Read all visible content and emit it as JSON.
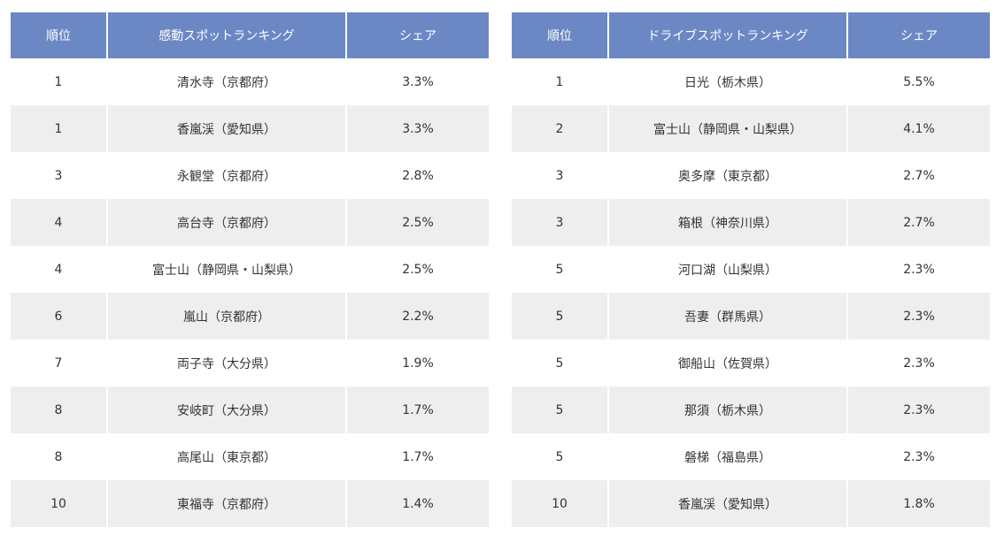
{
  "tables": [
    {
      "headers": {
        "rank": "順位",
        "name": "感動スポットランキング",
        "share": "シェア"
      },
      "rows": [
        {
          "rank": "1",
          "name": "清水寺（京都府）",
          "share": "3.3%"
        },
        {
          "rank": "1",
          "name": "香嵐渓（愛知県）",
          "share": "3.3%"
        },
        {
          "rank": "3",
          "name": "永観堂（京都府）",
          "share": "2.8%"
        },
        {
          "rank": "4",
          "name": "高台寺（京都府）",
          "share": "2.5%"
        },
        {
          "rank": "4",
          "name": "富士山（静岡県・山梨県）",
          "share": "2.5%"
        },
        {
          "rank": "6",
          "name": "嵐山（京都府）",
          "share": "2.2%"
        },
        {
          "rank": "7",
          "name": "両子寺（大分県）",
          "share": "1.9%"
        },
        {
          "rank": "8",
          "name": "安岐町（大分県）",
          "share": "1.7%"
        },
        {
          "rank": "8",
          "name": "高尾山（東京都）",
          "share": "1.7%"
        },
        {
          "rank": "10",
          "name": "東福寺（京都府）",
          "share": "1.4%"
        }
      ]
    },
    {
      "headers": {
        "rank": "順位",
        "name": "ドライブスポットランキング",
        "share": "シェア"
      },
      "rows": [
        {
          "rank": "1",
          "name": "日光（栃木県）",
          "share": "5.5%"
        },
        {
          "rank": "2",
          "name": "富士山（静岡県・山梨県）",
          "share": "4.1%"
        },
        {
          "rank": "3",
          "name": "奥多摩（東京都）",
          "share": "2.7%"
        },
        {
          "rank": "3",
          "name": "箱根（神奈川県）",
          "share": "2.7%"
        },
        {
          "rank": "5",
          "name": "河口湖（山梨県）",
          "share": "2.3%"
        },
        {
          "rank": "5",
          "name": "吾妻（群馬県）",
          "share": "2.3%"
        },
        {
          "rank": "5",
          "name": "御船山（佐賀県）",
          "share": "2.3%"
        },
        {
          "rank": "5",
          "name": "那須（栃木県）",
          "share": "2.3%"
        },
        {
          "rank": "5",
          "name": "磐梯（福島県）",
          "share": "2.3%"
        },
        {
          "rank": "10",
          "name": "香嵐渓（愛知県）",
          "share": "1.8%"
        }
      ]
    }
  ],
  "colors": {
    "header_bg": "#6c88c4",
    "header_text": "#ffffff",
    "row_alt_bg": "#eeeeee",
    "row_bg": "#ffffff",
    "cell_text": "#333333"
  }
}
